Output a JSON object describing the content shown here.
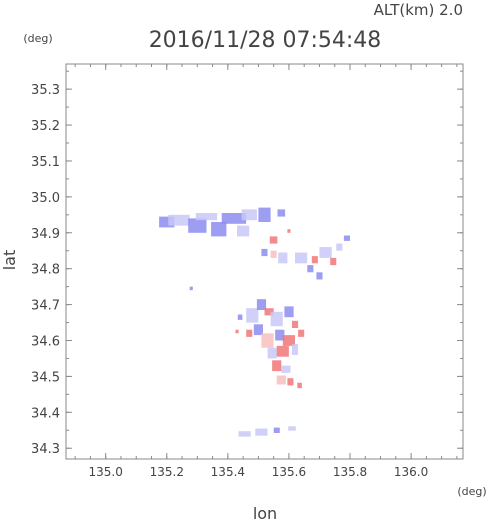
{
  "header": {
    "altitude_label": "ALT(km) 2.0",
    "timestamp": "2016/11/28 07:54:48"
  },
  "chart_data": {
    "type": "heatmap",
    "title": "2016/11/28 07:54:48",
    "annotations": [
      "ALT(km) 2.0"
    ],
    "xlabel": "lon",
    "ylabel": "lat",
    "x_unit_label": "(deg)",
    "y_unit_label": "(deg)",
    "xlim": [
      134.87,
      136.17
    ],
    "ylim": [
      34.27,
      35.37
    ],
    "x_ticks": [
      135.0,
      135.2,
      135.4,
      135.6,
      135.8,
      136.0
    ],
    "x_tick_labels": [
      "135.0",
      "135.2",
      "135.4",
      "135.6",
      "135.8",
      "136.0"
    ],
    "y_ticks": [
      34.3,
      34.4,
      34.5,
      34.6,
      34.7,
      34.8,
      34.9,
      35.0,
      35.1,
      35.2,
      35.3
    ],
    "y_tick_labels": [
      "34.3",
      "34.4",
      "34.5",
      "34.6",
      "34.7",
      "34.8",
      "34.9",
      "35.0",
      "35.1",
      "35.2",
      "35.3"
    ],
    "grid": false,
    "colors": {
      "negative": "#8c8cf0",
      "negative_light": "#c8c8f8",
      "positive": "#f07878",
      "positive_light": "#f8c0c0"
    },
    "cells": [
      {
        "lon": 135.2,
        "lat": 34.93,
        "w": 0.05,
        "h": 0.03,
        "tone": "negative"
      },
      {
        "lon": 135.24,
        "lat": 34.935,
        "w": 0.07,
        "h": 0.03,
        "tone": "negative_light"
      },
      {
        "lon": 135.3,
        "lat": 34.92,
        "w": 0.06,
        "h": 0.04,
        "tone": "negative"
      },
      {
        "lon": 135.33,
        "lat": 34.945,
        "w": 0.07,
        "h": 0.02,
        "tone": "negative_light"
      },
      {
        "lon": 135.37,
        "lat": 34.91,
        "w": 0.05,
        "h": 0.04,
        "tone": "negative"
      },
      {
        "lon": 135.42,
        "lat": 34.94,
        "w": 0.08,
        "h": 0.03,
        "tone": "negative"
      },
      {
        "lon": 135.47,
        "lat": 34.95,
        "w": 0.05,
        "h": 0.03,
        "tone": "negative_light"
      },
      {
        "lon": 135.45,
        "lat": 34.905,
        "w": 0.04,
        "h": 0.03,
        "tone": "negative_light"
      },
      {
        "lon": 135.52,
        "lat": 34.95,
        "w": 0.04,
        "h": 0.04,
        "tone": "negative"
      },
      {
        "lon": 135.575,
        "lat": 34.955,
        "w": 0.025,
        "h": 0.02,
        "tone": "negative"
      },
      {
        "lon": 135.55,
        "lat": 34.88,
        "w": 0.025,
        "h": 0.02,
        "tone": "positive"
      },
      {
        "lon": 135.6,
        "lat": 34.905,
        "w": 0.01,
        "h": 0.01,
        "tone": "positive"
      },
      {
        "lon": 135.52,
        "lat": 34.845,
        "w": 0.02,
        "h": 0.02,
        "tone": "negative"
      },
      {
        "lon": 135.55,
        "lat": 34.84,
        "w": 0.02,
        "h": 0.02,
        "tone": "positive_light"
      },
      {
        "lon": 135.58,
        "lat": 34.83,
        "w": 0.03,
        "h": 0.03,
        "tone": "negative_light"
      },
      {
        "lon": 135.64,
        "lat": 34.83,
        "w": 0.04,
        "h": 0.03,
        "tone": "negative_light"
      },
      {
        "lon": 135.67,
        "lat": 34.8,
        "w": 0.02,
        "h": 0.02,
        "tone": "negative"
      },
      {
        "lon": 135.685,
        "lat": 34.825,
        "w": 0.02,
        "h": 0.02,
        "tone": "positive"
      },
      {
        "lon": 135.72,
        "lat": 34.845,
        "w": 0.04,
        "h": 0.03,
        "tone": "negative_light"
      },
      {
        "lon": 135.745,
        "lat": 34.82,
        "w": 0.02,
        "h": 0.02,
        "tone": "positive"
      },
      {
        "lon": 135.765,
        "lat": 34.86,
        "w": 0.02,
        "h": 0.02,
        "tone": "negative_light"
      },
      {
        "lon": 135.79,
        "lat": 34.885,
        "w": 0.02,
        "h": 0.015,
        "tone": "negative"
      },
      {
        "lon": 135.7,
        "lat": 34.78,
        "w": 0.02,
        "h": 0.02,
        "tone": "negative"
      },
      {
        "lon": 135.28,
        "lat": 34.745,
        "w": 0.01,
        "h": 0.01,
        "tone": "negative"
      },
      {
        "lon": 135.48,
        "lat": 34.67,
        "w": 0.04,
        "h": 0.04,
        "tone": "negative_light"
      },
      {
        "lon": 135.51,
        "lat": 34.7,
        "w": 0.03,
        "h": 0.03,
        "tone": "negative"
      },
      {
        "lon": 135.535,
        "lat": 34.68,
        "w": 0.03,
        "h": 0.02,
        "tone": "positive"
      },
      {
        "lon": 135.56,
        "lat": 34.66,
        "w": 0.04,
        "h": 0.04,
        "tone": "negative_light"
      },
      {
        "lon": 135.6,
        "lat": 34.68,
        "w": 0.03,
        "h": 0.03,
        "tone": "negative"
      },
      {
        "lon": 135.62,
        "lat": 34.645,
        "w": 0.02,
        "h": 0.02,
        "tone": "positive"
      },
      {
        "lon": 135.5,
        "lat": 34.63,
        "w": 0.03,
        "h": 0.03,
        "tone": "negative"
      },
      {
        "lon": 135.47,
        "lat": 34.62,
        "w": 0.02,
        "h": 0.02,
        "tone": "positive"
      },
      {
        "lon": 135.53,
        "lat": 34.6,
        "w": 0.04,
        "h": 0.04,
        "tone": "positive_light"
      },
      {
        "lon": 135.57,
        "lat": 34.615,
        "w": 0.03,
        "h": 0.03,
        "tone": "negative"
      },
      {
        "lon": 135.6,
        "lat": 34.6,
        "w": 0.04,
        "h": 0.03,
        "tone": "positive"
      },
      {
        "lon": 135.64,
        "lat": 34.62,
        "w": 0.02,
        "h": 0.02,
        "tone": "positive"
      },
      {
        "lon": 135.545,
        "lat": 34.565,
        "w": 0.03,
        "h": 0.03,
        "tone": "negative_light"
      },
      {
        "lon": 135.58,
        "lat": 34.57,
        "w": 0.04,
        "h": 0.03,
        "tone": "positive"
      },
      {
        "lon": 135.62,
        "lat": 34.575,
        "w": 0.02,
        "h": 0.03,
        "tone": "negative_light"
      },
      {
        "lon": 135.56,
        "lat": 34.53,
        "w": 0.03,
        "h": 0.03,
        "tone": "positive"
      },
      {
        "lon": 135.59,
        "lat": 34.52,
        "w": 0.03,
        "h": 0.02,
        "tone": "negative_light"
      },
      {
        "lon": 135.575,
        "lat": 34.49,
        "w": 0.03,
        "h": 0.025,
        "tone": "positive_light"
      },
      {
        "lon": 135.605,
        "lat": 34.485,
        "w": 0.02,
        "h": 0.02,
        "tone": "positive"
      },
      {
        "lon": 135.635,
        "lat": 34.475,
        "w": 0.015,
        "h": 0.015,
        "tone": "positive"
      },
      {
        "lon": 135.44,
        "lat": 34.665,
        "w": 0.015,
        "h": 0.015,
        "tone": "negative"
      },
      {
        "lon": 135.43,
        "lat": 34.625,
        "w": 0.01,
        "h": 0.01,
        "tone": "positive"
      },
      {
        "lon": 135.455,
        "lat": 34.34,
        "w": 0.04,
        "h": 0.015,
        "tone": "negative_light"
      },
      {
        "lon": 135.51,
        "lat": 34.345,
        "w": 0.04,
        "h": 0.02,
        "tone": "negative_light"
      },
      {
        "lon": 135.56,
        "lat": 34.35,
        "w": 0.02,
        "h": 0.015,
        "tone": "negative"
      },
      {
        "lon": 135.61,
        "lat": 34.355,
        "w": 0.025,
        "h": 0.012,
        "tone": "negative_light"
      }
    ]
  }
}
